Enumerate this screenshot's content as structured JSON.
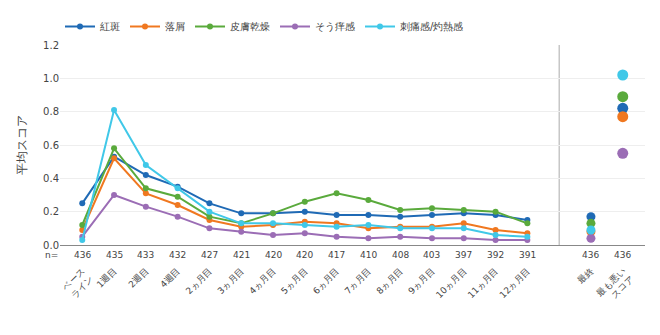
{
  "chart_data": {
    "type": "line",
    "ylabel": "平均スコア",
    "categories": [
      "ベース\nライン",
      "1週目",
      "2週目",
      "4週目",
      "2ヵ月目",
      "3ヵ月目",
      "4ヵ月目",
      "5ヵ月目",
      "6ヵ月目",
      "7ヵ月目",
      "8ヵ月目",
      "9ヵ月目",
      "10ヵ月目",
      "11ヵ月目",
      "12ヵ月目",
      "最終",
      "最も悪い\nスコア"
    ],
    "series": [
      {
        "name": "紅斑",
        "color": "#1f6ab5",
        "values": [
          0.25,
          0.53,
          0.42,
          0.35,
          0.25,
          0.19,
          0.19,
          0.2,
          0.18,
          0.18,
          0.17,
          0.18,
          0.19,
          0.18,
          0.15,
          0.17,
          0.82
        ]
      },
      {
        "name": "落屑",
        "color": "#f07820",
        "values": [
          0.09,
          0.52,
          0.31,
          0.24,
          0.15,
          0.11,
          0.12,
          0.14,
          0.13,
          0.1,
          0.11,
          0.11,
          0.13,
          0.09,
          0.07,
          0.08,
          0.77
        ]
      },
      {
        "name": "皮膚乾燥",
        "color": "#5aaa3c",
        "values": [
          0.12,
          0.58,
          0.34,
          0.29,
          0.17,
          0.13,
          0.19,
          0.26,
          0.31,
          0.27,
          0.21,
          0.22,
          0.21,
          0.2,
          0.13,
          0.13,
          0.89
        ]
      },
      {
        "name": "そう痒感",
        "color": "#9b6db5",
        "values": [
          0.05,
          0.3,
          0.23,
          0.17,
          0.1,
          0.08,
          0.06,
          0.07,
          0.05,
          0.04,
          0.05,
          0.04,
          0.04,
          0.03,
          0.03,
          0.04,
          0.55
        ]
      },
      {
        "name": "刺痛感/灼熱感",
        "color": "#40c8e8",
        "values": [
          0.03,
          0.81,
          0.48,
          0.34,
          0.2,
          0.13,
          0.13,
          0.12,
          0.11,
          0.12,
          0.1,
          0.1,
          0.1,
          0.06,
          0.05,
          0.09,
          1.02
        ]
      }
    ],
    "ylim": [
      0,
      1.2
    ],
    "yticks": [
      {
        "value": 0,
        "label": "0.0"
      },
      0.2,
      0.4,
      0.6,
      0.8,
      {
        "value": 1.0,
        "label": "1.0"
      },
      1.2
    ],
    "grid": true,
    "legend": "upper left",
    "marker": "circle",
    "n_label_prefix": "n=",
    "n_labels": [
      436,
      435,
      433,
      432,
      427,
      421,
      420,
      420,
      417,
      410,
      408,
      403,
      397,
      392,
      391,
      436,
      436
    ]
  }
}
